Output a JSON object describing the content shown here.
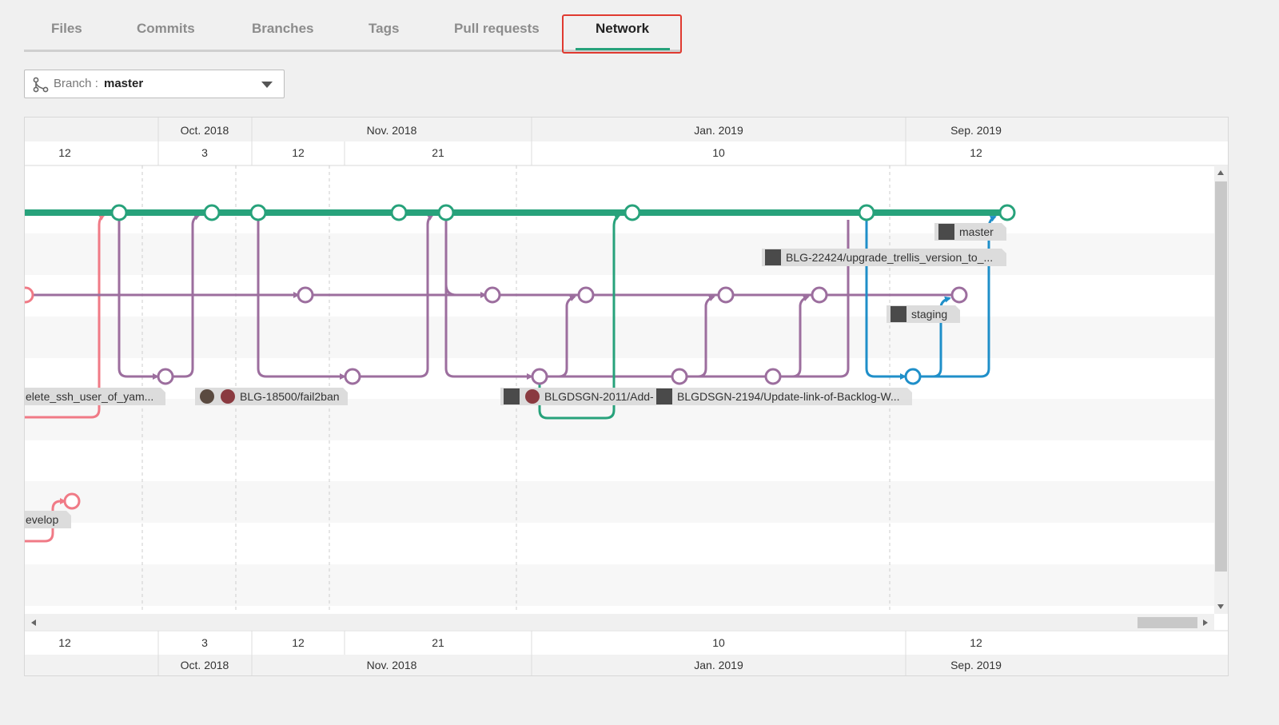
{
  "tabs": [
    {
      "label": "Files"
    },
    {
      "label": "Commits"
    },
    {
      "label": "Branches"
    },
    {
      "label": "Tags"
    },
    {
      "label": "Pull requests"
    },
    {
      "label": "Network",
      "active": true
    }
  ],
  "branch_select": {
    "label": "Branch :",
    "value": "master"
  },
  "timeline": {
    "months": [
      "Oct. 2018",
      "Nov. 2018",
      "Jan. 2019",
      "Sep. 2019"
    ],
    "days": [
      "12",
      "3",
      "12",
      "21",
      "10",
      "12"
    ]
  },
  "refs": {
    "master": "master",
    "upgrade_trellis": "BLG-22424/upgrade_trellis_version_to_...",
    "staging": "staging",
    "delete_ssh": "elete_ssh_user_of_yam...",
    "fail2ban": "BLG-18500/fail2ban",
    "blgdsgn_2011": "BLGDSGN-2011/Add-",
    "blgdsgn_2194": "BLGDSGN-2194/Update-link-of-Backlog-W...",
    "develop": "evelop"
  },
  "colors": {
    "master": "#27a27b",
    "purple": "#9c6e9e",
    "pink": "#f07a86",
    "blue": "#1f8fc9",
    "active_tab_outline": "#e03a30"
  }
}
